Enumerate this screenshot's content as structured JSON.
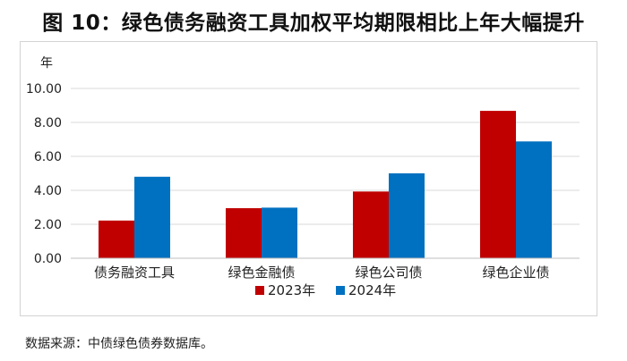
{
  "title": "图 10：绿色债务融资工具加权平均期限相比上年大幅提升",
  "source": "数据来源：中债绿色债券数据库。",
  "colors": {
    "series_2023": "#c00000",
    "series_2024": "#0070c0",
    "grid": "#d9d9d9",
    "axis": "#bfbfbf"
  },
  "chart_data": {
    "type": "bar",
    "title": "图 10：绿色债务融资工具加权平均期限相比上年大幅提升",
    "ylabel": "年",
    "xlabel": "",
    "ylim": [
      0,
      10
    ],
    "yticks": [
      "0.00",
      "2.00",
      "4.00",
      "6.00",
      "8.00",
      "10.00"
    ],
    "categories": [
      "债务融资工具",
      "绿色金融债",
      "绿色公司债",
      "绿色企业债"
    ],
    "series": [
      {
        "name": "2023年",
        "color": "#c00000",
        "values": [
          2.22,
          2.95,
          3.93,
          8.68
        ]
      },
      {
        "name": "2024年",
        "color": "#0070c0",
        "values": [
          4.8,
          2.98,
          5.0,
          6.88
        ]
      }
    ],
    "grid": true,
    "legend": "bottom-center"
  }
}
